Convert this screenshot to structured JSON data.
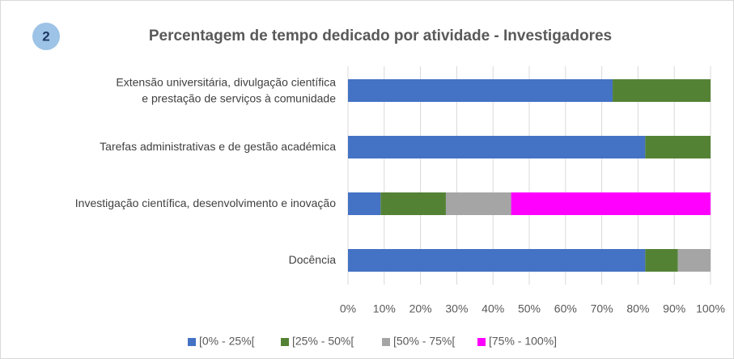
{
  "chart_data": {
    "type": "stacked-barh",
    "badge": "2",
    "title": "Percentagem de tempo dedicado por atividade - Investigadores",
    "categories": [
      "Extensão universitária, divulgação científica e prestação de serviços à comunidade",
      "Tarefas administrativas e de gestão académica",
      "Investigação científica, desenvolvimento e inovação",
      "Docência"
    ],
    "series": [
      {
        "name": "[0% - 25%[",
        "color": "#4472c4",
        "values": [
          73,
          82,
          9,
          82
        ]
      },
      {
        "name": "[25% - 50%[",
        "color": "#548235",
        "values": [
          27,
          18,
          18,
          9
        ]
      },
      {
        "name": "[50% - 75%[",
        "color": "#a5a5a5",
        "values": [
          0,
          0,
          18,
          9
        ]
      },
      {
        "name": "[75% - 100%]",
        "color": "#ff00ff",
        "values": [
          0,
          0,
          55,
          0
        ]
      }
    ],
    "xlim": [
      0,
      100
    ],
    "xticks": [
      {
        "value": 0,
        "label": "0%"
      },
      {
        "value": 10,
        "label": "10%"
      },
      {
        "value": 20,
        "label": "20%"
      },
      {
        "value": 30,
        "label": "30%"
      },
      {
        "value": 40,
        "label": "40%"
      },
      {
        "value": 50,
        "label": "50%"
      },
      {
        "value": 60,
        "label": "60%"
      },
      {
        "value": 70,
        "label": "70%"
      },
      {
        "value": 80,
        "label": "80%"
      },
      {
        "value": 90,
        "label": "90%"
      },
      {
        "value": 100,
        "label": "100%"
      }
    ],
    "grid": true,
    "legend": "bottom"
  }
}
